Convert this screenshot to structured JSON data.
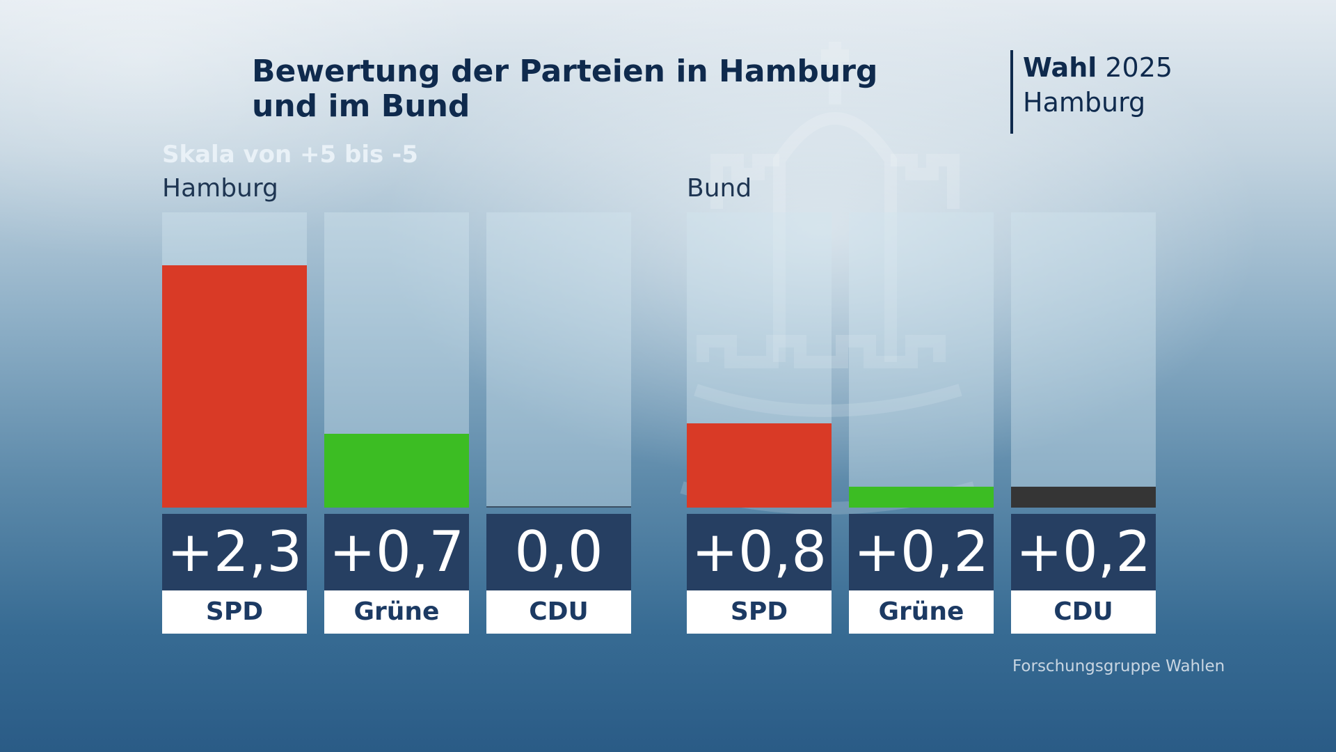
{
  "header": {
    "title_line1": "Bewertung der Parteien in Hamburg",
    "title_line2": "und im Bund",
    "brand_bold": "Wahl",
    "brand_year": "2025",
    "brand_region": "Hamburg"
  },
  "subtitle": "Skala von +5 bis -5",
  "source": "Forschungsgruppe Wahlen",
  "colors": {
    "SPD": "#d93a26",
    "Grüne": "#3cbd23",
    "CDU": "#353535"
  },
  "chart_data": [
    {
      "type": "bar",
      "title": "Hamburg",
      "categories": [
        "SPD",
        "Grüne",
        "CDU"
      ],
      "values": [
        2.3,
        0.7,
        0.0
      ],
      "value_labels": [
        "+2,3",
        "+0,7",
        "0,0"
      ],
      "ylim": [
        0,
        2.8
      ],
      "scale_note": "Skala von +5 bis -5"
    },
    {
      "type": "bar",
      "title": "Bund",
      "categories": [
        "SPD",
        "Grüne",
        "CDU"
      ],
      "values": [
        0.8,
        0.2,
        0.2
      ],
      "value_labels": [
        "+0,8",
        "+0,2",
        "+0,2"
      ],
      "ylim": [
        0,
        2.8
      ],
      "scale_note": "Skala von +5 bis -5"
    }
  ]
}
